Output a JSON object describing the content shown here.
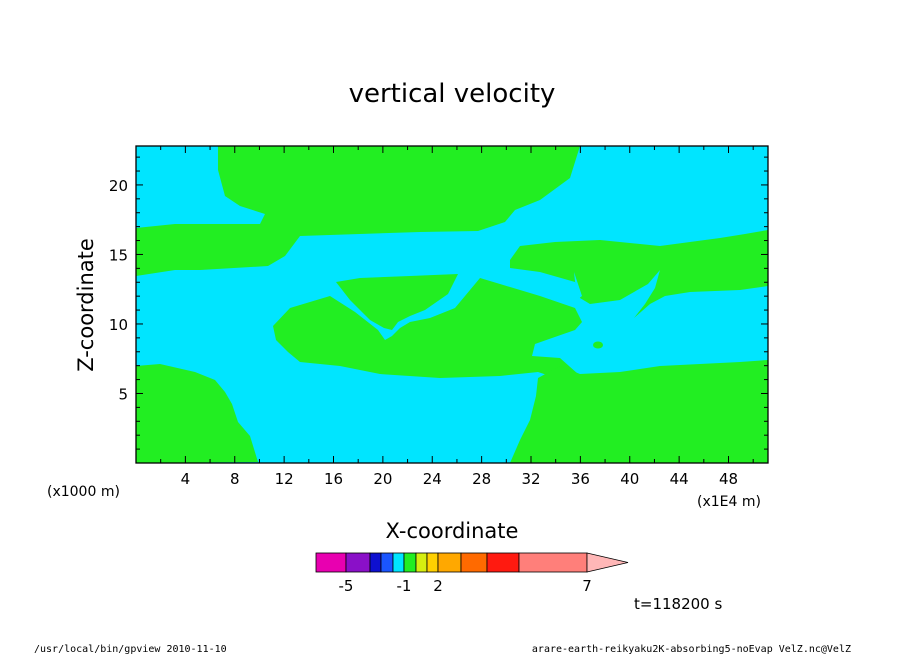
{
  "chart_data": {
    "type": "heatmap",
    "title": "vertical velocity",
    "xlabel": "X-coordinate",
    "ylabel": "Z-coordinate",
    "x_unit_left": "(x1000 m)",
    "x_unit_right": "(x1E4 m)",
    "xlim": [
      0,
      51.2
    ],
    "ylim": [
      0,
      22.8
    ],
    "x_ticks": [
      "4",
      "8",
      "12",
      "16",
      "20",
      "24",
      "28",
      "32",
      "36",
      "40",
      "44",
      "48"
    ],
    "y_ticks": [
      "5",
      "10",
      "15",
      "20"
    ],
    "x_tick_values": [
      4,
      8,
      12,
      16,
      20,
      24,
      28,
      32,
      36,
      40,
      44,
      48
    ],
    "y_tick_values": [
      5,
      10,
      15,
      20
    ],
    "regions": [
      {
        "level": "-1 to 0",
        "color": "#00e5ff"
      },
      {
        "level": "0 to 1",
        "color": "#22ee22"
      }
    ],
    "colorbar": {
      "colors": [
        "#e800b0",
        "#8a10c8",
        "#0e10d0",
        "#1a55ff",
        "#00e5ff",
        "#22ee22",
        "#d6ee10",
        "#ffd000",
        "#ffa800",
        "#ff6a00",
        "#ff1a10",
        "#ff7f7a",
        "#ffb7b7"
      ],
      "labels": [
        "-5",
        "-1",
        "2",
        "7"
      ],
      "label_positions": [
        -5,
        -1,
        2,
        7
      ]
    },
    "time_label": "t=118200 s"
  },
  "footer": {
    "left": "/usr/local/bin/gpview  2010-11-10",
    "right": "arare-earth-reikyaku2K-absorbing5-noEvap_VelZ.nc@VelZ"
  }
}
